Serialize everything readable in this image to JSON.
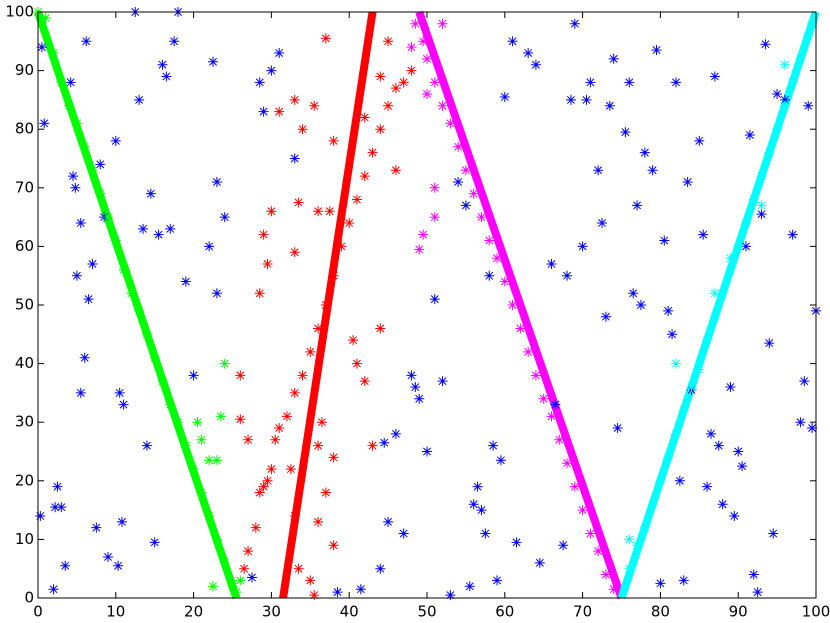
{
  "chart_data": {
    "type": "scatter",
    "xlim": [
      0,
      100
    ],
    "ylim": [
      0,
      100
    ],
    "xticks": [
      0,
      10,
      20,
      30,
      40,
      50,
      60,
      70,
      80,
      90,
      100
    ],
    "yticks": [
      0,
      10,
      20,
      30,
      40,
      50,
      60,
      70,
      80,
      90,
      100
    ],
    "marker": "*",
    "series": [
      {
        "color": "#0000ff",
        "x": [
          0.5,
          0.8,
          0.3,
          2,
          2.5,
          2.2,
          3,
          3.5,
          4.2,
          4.5,
          4.8,
          5,
          5.5,
          5.5,
          6,
          6.2,
          6.5,
          7,
          7.5,
          8,
          8.5,
          9,
          10,
          10.3,
          10.5,
          10.8,
          11,
          12.5,
          13,
          13.5,
          14,
          14.5,
          15,
          15.5,
          16,
          16.5,
          17,
          17.5,
          18,
          19,
          20,
          22,
          22.5,
          23,
          23,
          24,
          27.5,
          28.5,
          29,
          30,
          31,
          33,
          38.5,
          41.5,
          44,
          44.5,
          45,
          46,
          47,
          48,
          48.5,
          49,
          50,
          51,
          52,
          53,
          54,
          55,
          55.5,
          56,
          56.5,
          57,
          57.5,
          58,
          58.5,
          59,
          59.5,
          60,
          61,
          61.5,
          63,
          64,
          64.5,
          66,
          66.5,
          67.5,
          68,
          68.5,
          69,
          70,
          70.5,
          71,
          72,
          72.5,
          73,
          73.5,
          74,
          74.5,
          75.5,
          76,
          76.5,
          77,
          77.5,
          78,
          79,
          79.5,
          80,
          80.5,
          81,
          81.5,
          82,
          82.5,
          83,
          83.5,
          84,
          85,
          85.5,
          86,
          86.5,
          87,
          87.5,
          88,
          89,
          89.5,
          90,
          90.5,
          91,
          91.5,
          92,
          92.5,
          93,
          93.5,
          94,
          94.5,
          95,
          96,
          97,
          98,
          98.5,
          99,
          99.5,
          100
        ],
        "values": [
          94,
          81,
          14,
          1.5,
          19,
          15.5,
          15.5,
          5.5,
          88,
          72,
          70,
          55,
          64,
          35,
          41,
          95,
          51,
          57,
          12,
          74,
          65,
          7,
          78,
          5.5,
          35,
          13,
          33,
          100,
          85,
          63,
          26,
          69,
          9.5,
          62,
          91,
          89,
          63,
          95,
          100,
          54,
          38,
          60,
          91.5,
          71,
          52,
          65,
          3.5,
          88,
          83,
          90,
          93,
          75,
          1,
          1.5,
          5,
          26.5,
          13,
          28,
          11,
          38,
          36,
          34,
          25,
          51,
          37,
          0.5,
          71,
          67,
          2,
          16,
          19,
          15,
          11,
          55,
          26,
          3,
          23.5,
          85.5,
          95,
          9.5,
          93,
          91,
          6,
          57,
          33,
          9,
          55,
          85,
          98,
          60,
          85,
          88,
          73,
          64,
          48,
          84,
          92,
          29,
          79.5,
          88,
          52,
          67,
          50,
          76,
          73,
          93.5,
          2.5,
          61,
          49,
          45,
          88,
          20,
          3,
          71,
          35.5,
          78,
          62,
          19,
          28,
          89,
          26,
          16,
          36,
          14,
          25,
          22.5,
          60,
          79,
          4,
          1,
          65.5,
          94.5,
          43.5,
          11,
          86,
          85,
          62,
          30,
          37,
          84,
          29,
          49
        ]
      },
      {
        "color": "#00ff00",
        "x": [
          0,
          1,
          2,
          3,
          4,
          5,
          6,
          7,
          8,
          9,
          10,
          11,
          12,
          13,
          14,
          15,
          16,
          17,
          18,
          19,
          20,
          21,
          22,
          23,
          24,
          25,
          25.5,
          24,
          20.5,
          21,
          23.5,
          22,
          23,
          26,
          22.5
        ],
        "values": [
          100,
          99,
          93,
          88,
          84,
          81,
          77,
          73,
          69,
          65,
          61,
          56,
          52,
          49,
          45,
          41,
          37,
          33,
          30,
          26,
          22,
          18,
          14,
          10,
          6,
          2,
          1,
          40,
          30,
          27,
          31,
          23.5,
          23.5,
          3,
          2
        ]
      },
      {
        "color": "#ff0000",
        "x": [
          26,
          26,
          27,
          26.5,
          27,
          28,
          28.5,
          29,
          29.5,
          30,
          30.5,
          31,
          32,
          33,
          34,
          35,
          36,
          37,
          38,
          39,
          40,
          41,
          42,
          43,
          44,
          45,
          46,
          47,
          48,
          29,
          28.5,
          29.5,
          30,
          31,
          33,
          34,
          35.5,
          36,
          37,
          37.5,
          38,
          33.5,
          33,
          36,
          35,
          33.5,
          35.5,
          38,
          37,
          38,
          36,
          41,
          42,
          43,
          44,
          46,
          45,
          44,
          42,
          40.5,
          33,
          32.5,
          36.5
        ],
        "values": [
          38,
          30.5,
          27,
          5,
          8,
          12,
          18,
          19,
          20,
          22,
          27,
          29,
          31,
          35,
          38,
          42,
          46,
          50,
          55,
          60,
          64,
          68,
          72,
          76,
          80,
          84,
          87,
          88,
          90,
          62,
          52,
          57,
          66,
          83,
          85,
          80,
          84,
          66,
          95.5,
          66,
          78,
          67.5,
          59,
          13,
          3,
          5,
          0.5,
          9,
          18,
          24,
          26,
          40,
          37,
          26,
          46,
          73,
          95,
          89,
          82,
          44,
          14,
          22,
          30
        ]
      },
      {
        "color": "#ff00ff",
        "x": [
          48.5,
          49.5,
          50,
          51,
          52,
          53,
          54,
          55,
          56,
          57,
          58,
          59,
          60,
          61,
          62,
          63,
          64,
          65,
          66,
          67,
          68,
          69,
          70,
          71,
          72,
          73,
          74,
          48,
          49,
          49.5,
          50,
          51,
          51,
          52
        ],
        "values": [
          98,
          95,
          92,
          88,
          84,
          81,
          77,
          73,
          69,
          65,
          61,
          58,
          54,
          50,
          46,
          42,
          38,
          34,
          31,
          27,
          23,
          19,
          15,
          11,
          8,
          4,
          1.5,
          94,
          59.5,
          62,
          86,
          70,
          65,
          98
        ]
      },
      {
        "color": "#00ffff",
        "x": [
          75.5,
          76,
          77,
          78,
          79,
          80,
          81,
          82,
          83,
          84,
          85,
          86,
          87,
          88,
          89,
          90,
          91,
          92,
          93,
          94,
          95,
          96,
          97,
          98,
          99,
          99.5,
          76,
          82,
          85,
          87,
          89,
          93,
          96
        ],
        "values": [
          2,
          5,
          9,
          12,
          16,
          20,
          24,
          28,
          32,
          36,
          40,
          44,
          48,
          52,
          56,
          60,
          64,
          68,
          72,
          76,
          80,
          84,
          88,
          92,
          96,
          98,
          10,
          40,
          39,
          52,
          58,
          67,
          91
        ]
      }
    ],
    "lines": [
      {
        "color": "#00ff00",
        "x": [
          0,
          25.5
        ],
        "values": [
          100,
          0
        ]
      },
      {
        "color": "#ff0000",
        "x": [
          31.5,
          43
        ],
        "values": [
          0,
          100
        ]
      },
      {
        "color": "#ff00ff",
        "x": [
          49,
          75
        ],
        "values": [
          100,
          0
        ]
      },
      {
        "color": "#00ffff",
        "x": [
          75,
          100
        ],
        "values": [
          0,
          100
        ]
      }
    ]
  }
}
